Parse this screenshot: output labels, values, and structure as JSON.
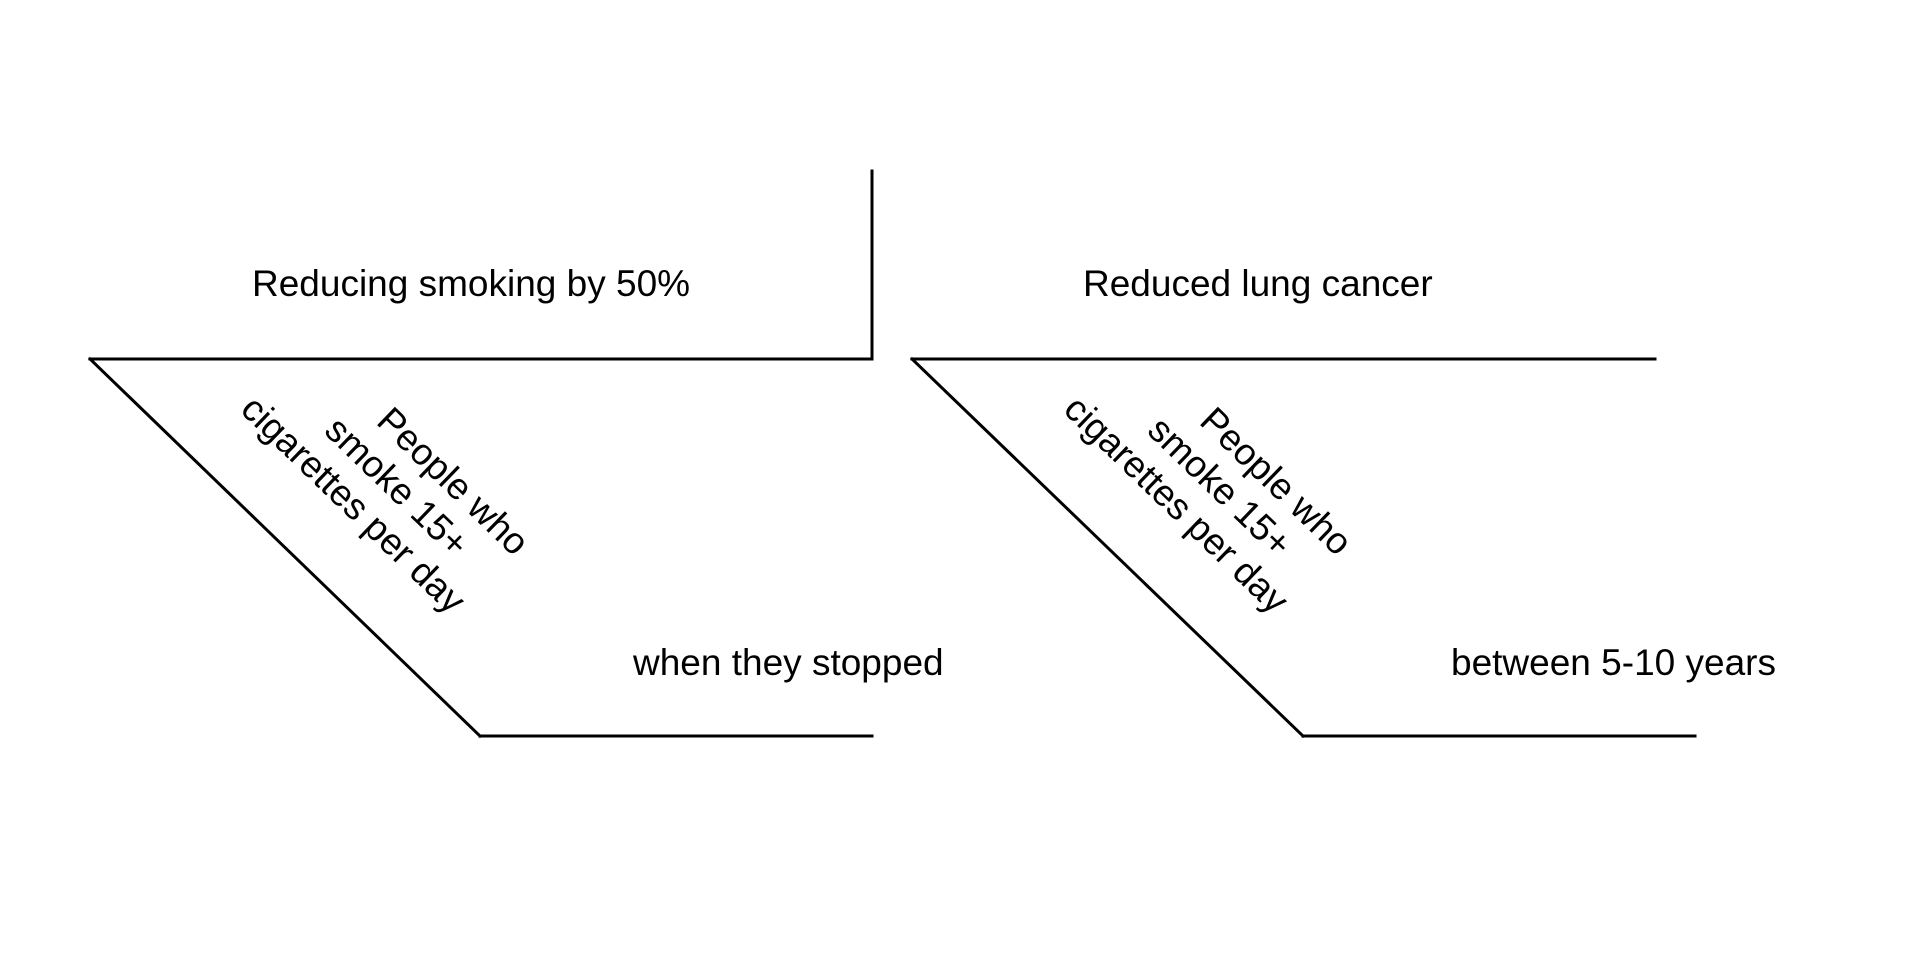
{
  "diagram": {
    "line_color": "#000000",
    "background": "#ffffff",
    "subject": "Reducing smoking by 50%",
    "predicate": "Reduced lung cancer",
    "branches": [
      {
        "modifier_lines": [
          "People who",
          "smoke 15+",
          "cigarettes per day"
        ],
        "object": "when they stopped"
      },
      {
        "modifier_lines": [
          "People who",
          "smoke 15+",
          "cigarettes per day"
        ],
        "object": "between 5-10 years"
      }
    ]
  }
}
